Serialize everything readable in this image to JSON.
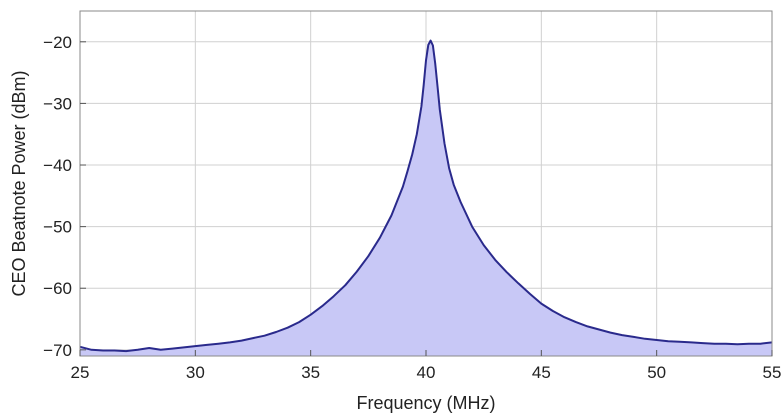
{
  "chart_data": {
    "type": "area",
    "title": "",
    "xlabel": "Frequency (MHz)",
    "ylabel": "CEO Beatnote Power (dBm)",
    "xlim": [
      25,
      55
    ],
    "ylim": [
      -71,
      -15
    ],
    "xticks": [
      25,
      30,
      35,
      40,
      45,
      50,
      55
    ],
    "yticks": [
      -20,
      -30,
      -40,
      -50,
      -60,
      -70
    ],
    "grid": true,
    "legend": "none",
    "line_color": "#2a2a8c",
    "fill_color": "#c8c8f6",
    "series": [
      {
        "x": [
          25,
          25.5,
          26,
          26.5,
          27,
          27.5,
          28,
          28.5,
          29,
          29.5,
          30,
          30.5,
          31,
          31.5,
          32,
          32.5,
          33,
          33.5,
          34,
          34.5,
          35,
          35.5,
          36,
          36.5,
          37,
          37.5,
          38,
          38.5,
          39,
          39.2,
          39.4,
          39.6,
          39.8,
          39.9,
          40,
          40.1,
          40.2,
          40.3,
          40.4,
          40.5,
          40.6,
          40.8,
          41,
          41.2,
          41.5,
          42,
          42.5,
          43,
          43.5,
          44,
          44.5,
          45,
          45.5,
          46,
          46.5,
          47,
          47.5,
          48,
          48.5,
          49,
          49.5,
          50,
          50.5,
          51,
          51.5,
          52,
          52.5,
          53,
          53.5,
          54,
          54.5,
          55
        ],
        "values": [
          -69.5,
          -70,
          -70.1,
          -70.1,
          -70.2,
          -70,
          -69.7,
          -70,
          -69.8,
          -69.6,
          -69.4,
          -69.2,
          -69,
          -68.8,
          -68.5,
          -68.1,
          -67.7,
          -67.1,
          -66.4,
          -65.5,
          -64.3,
          -62.9,
          -61.3,
          -59.5,
          -57.3,
          -54.8,
          -51.8,
          -48.2,
          -43.5,
          -41,
          -38.3,
          -35,
          -30.5,
          -27,
          -23,
          -20.5,
          -19.8,
          -20.6,
          -23.5,
          -27.2,
          -31,
          -36.5,
          -40.5,
          -43.2,
          -46,
          -50,
          -53,
          -55.4,
          -57.4,
          -59.2,
          -60.9,
          -62.5,
          -63.7,
          -64.7,
          -65.5,
          -66.2,
          -66.7,
          -67.2,
          -67.6,
          -67.9,
          -68.2,
          -68.4,
          -68.6,
          -68.7,
          -68.8,
          -68.9,
          -69,
          -69,
          -69.1,
          -69,
          -69,
          -68.8
        ]
      }
    ]
  }
}
